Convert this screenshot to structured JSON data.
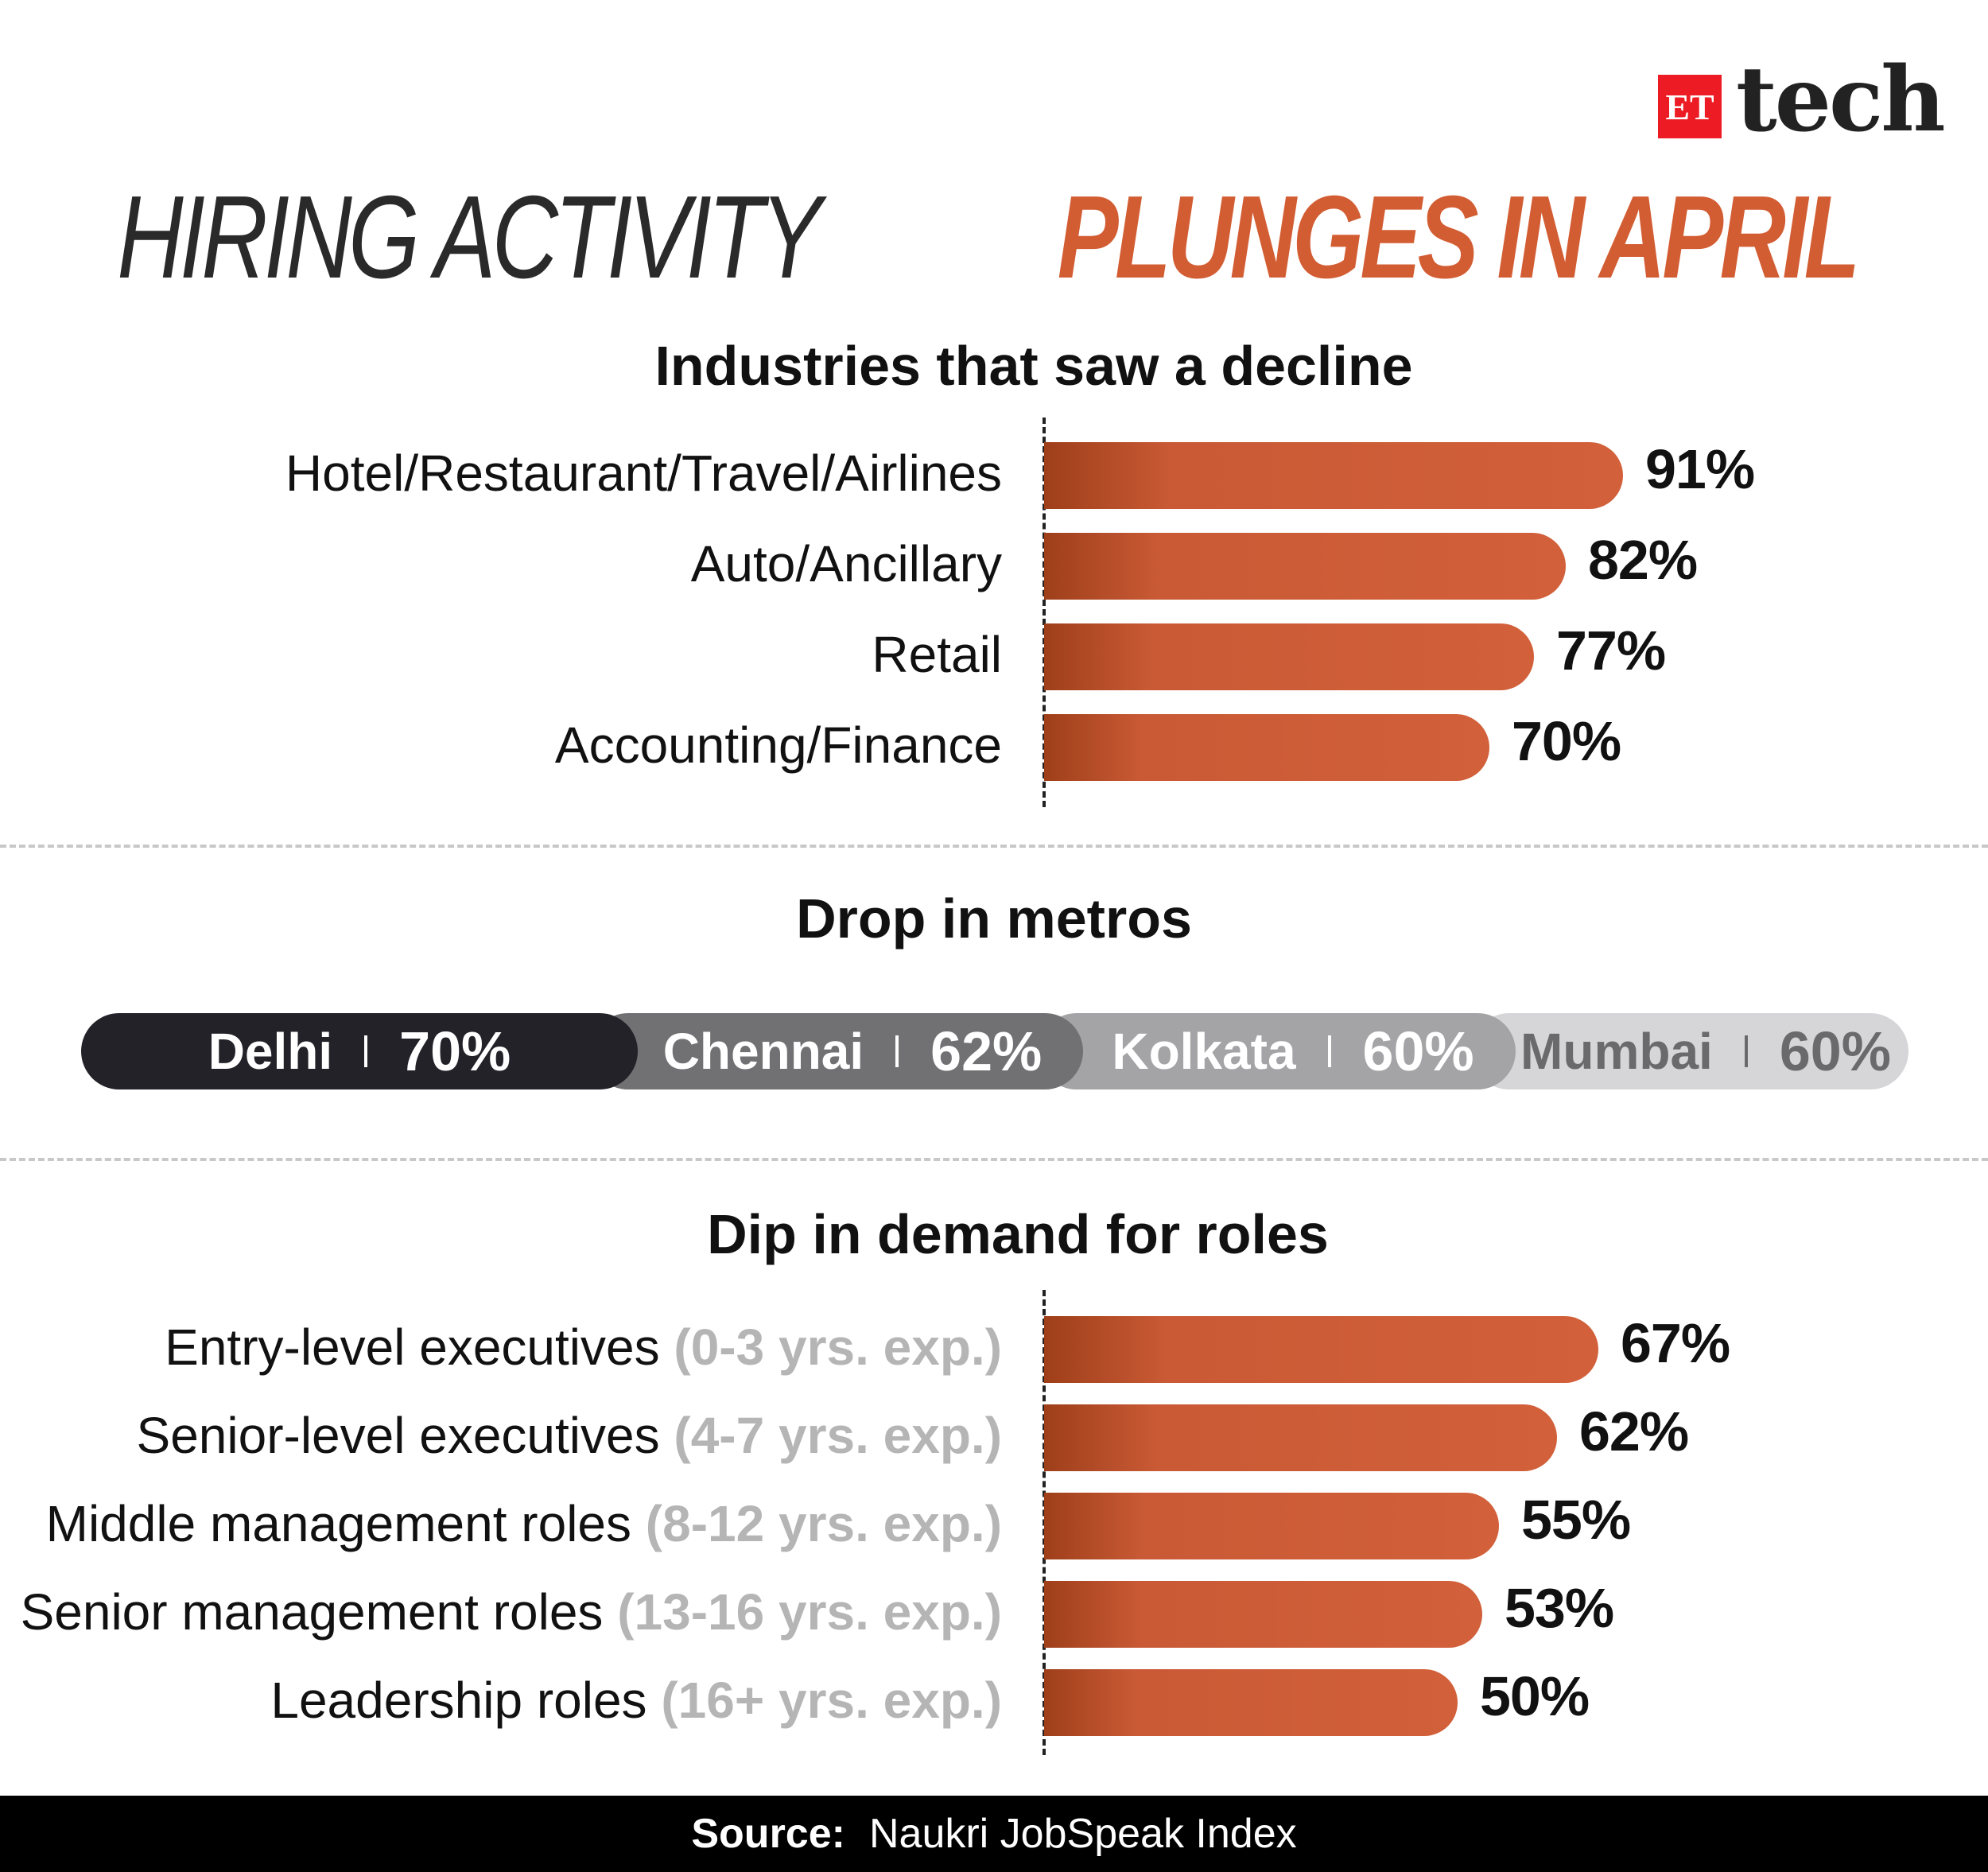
{
  "brand": {
    "et": "ET",
    "tech": "tech"
  },
  "title": {
    "part1": "HIRING ACTIVITY",
    "part2": "PLUNGES IN APRIL"
  },
  "colors": {
    "accent": "#d35d33",
    "bar": "#d2603a",
    "bar_dark": "#9e3f1a"
  },
  "chart_data": [
    {
      "type": "bar",
      "title": "Industries that saw a decline",
      "categories": [
        "Hotel/Restaurant/Travel/Airlines",
        "Auto/Ancillary",
        "Retail",
        "Accounting/Finance"
      ],
      "values": [
        91,
        82,
        77,
        70
      ],
      "value_labels": [
        "91%",
        "82%",
        "77%",
        "70%"
      ],
      "unit": "%"
    },
    {
      "type": "table",
      "title": "Drop in metros",
      "categories": [
        "Delhi",
        "Chennai",
        "Kolkata",
        "Mumbai"
      ],
      "values": [
        70,
        62,
        60,
        60
      ],
      "value_labels": [
        "70%",
        "62%",
        "60%",
        "60%"
      ],
      "pill_colors": [
        "#222228",
        "#717174",
        "#a4a4a7",
        "#d6d6d9"
      ],
      "text_colors": [
        "#ffffff",
        "#ffffff",
        "#ffffff",
        "#6a6a6d"
      ]
    },
    {
      "type": "bar",
      "title": "Dip in demand for roles",
      "categories": [
        "Entry-level executives",
        "Senior-level executives",
        "Middle management roles",
        "Senior management roles",
        "Leadership roles"
      ],
      "category_notes": [
        "(0-3 yrs. exp.)",
        "(4-7 yrs. exp.)",
        "(8-12 yrs. exp.)",
        "(13-16 yrs. exp.)",
        "(16+ yrs. exp.)"
      ],
      "values": [
        67,
        62,
        55,
        53,
        50
      ],
      "value_labels": [
        "67%",
        "62%",
        "55%",
        "53%",
        "50%"
      ],
      "unit": "%"
    }
  ],
  "footer": {
    "label": "Source:",
    "text": "Naukri JobSpeak Index"
  }
}
